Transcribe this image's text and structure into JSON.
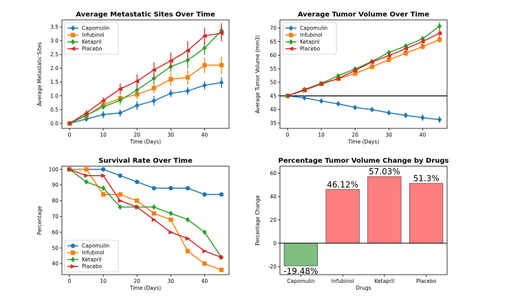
{
  "chart_data": [
    {
      "type": "line",
      "title": "Average Metastatic Sites Over Time",
      "xlabel": "Time (Days)",
      "ylabel": "Average Metastatic Sites",
      "xlim": [
        -2.25,
        47.25
      ],
      "ylim": [
        -0.18,
        3.75
      ],
      "xticks": [
        0,
        10,
        20,
        30,
        40
      ],
      "yticks": [
        0.0,
        0.5,
        1.0,
        1.5,
        2.0,
        2.5,
        3.0,
        3.5
      ],
      "ytick_labels": [
        "0.0",
        "0.5",
        "1.0",
        "1.5",
        "2.0",
        "2.5",
        "3.0",
        "3.5"
      ],
      "legend": "top-left",
      "error_bars": true,
      "x": [
        0,
        5,
        10,
        15,
        20,
        25,
        30,
        35,
        40,
        45
      ],
      "series": [
        {
          "name": "Capomulin",
          "color": "#1f77b4",
          "marker": "diamond",
          "values": [
            0.0,
            0.16,
            0.32,
            0.38,
            0.65,
            0.82,
            1.09,
            1.18,
            1.38,
            1.48
          ],
          "errors": [
            0,
            0.07,
            0.13,
            0.13,
            0.16,
            0.18,
            0.14,
            0.14,
            0.15,
            0.2
          ]
        },
        {
          "name": "Infubinol",
          "color": "#ff7f0e",
          "marker": "square",
          "values": [
            0.0,
            0.28,
            0.67,
            0.91,
            1.05,
            1.28,
            1.6,
            1.67,
            2.11,
            2.11
          ],
          "errors": [
            0,
            0.09,
            0.12,
            0.12,
            0.17,
            0.19,
            0.23,
            0.26,
            0.29,
            0.31
          ]
        },
        {
          "name": "Ketapril",
          "color": "#2ca02c",
          "marker": "diamond",
          "values": [
            0.0,
            0.3,
            0.6,
            0.84,
            1.21,
            1.63,
            2.06,
            2.29,
            2.73,
            3.36
          ],
          "errors": [
            0,
            0.1,
            0.1,
            0.16,
            0.18,
            0.22,
            0.2,
            0.3,
            0.25,
            0.28
          ]
        },
        {
          "name": "Placebo",
          "color": "#d62728",
          "marker": "triangle-left",
          "values": [
            0.0,
            0.38,
            0.83,
            1.25,
            1.53,
            1.94,
            2.27,
            2.64,
            3.17,
            3.27
          ],
          "errors": [
            0,
            0.1,
            0.12,
            0.19,
            0.24,
            0.27,
            0.3,
            0.34,
            0.3,
            0.3
          ]
        }
      ]
    },
    {
      "type": "line",
      "title": "Average Tumor Volume Over Time",
      "xlabel": "Time (Days)",
      "ylabel": "Average Tumor Volume (mm3)",
      "xlim": [
        -2.25,
        47.25
      ],
      "ylim": [
        33.0,
        73.0
      ],
      "xticks": [
        0,
        10,
        20,
        30,
        40
      ],
      "yticks": [
        35,
        40,
        45,
        50,
        55,
        60,
        65,
        70
      ],
      "ytick_labels": [
        "35",
        "40",
        "45",
        "50",
        "55",
        "60",
        "65",
        "70"
      ],
      "hline": 45,
      "legend": "top-left",
      "error_bars": true,
      "x": [
        0,
        5,
        10,
        15,
        20,
        25,
        30,
        35,
        40,
        45
      ],
      "series": [
        {
          "name": "Capomulin",
          "color": "#1f77b4",
          "marker": "diamond",
          "values": [
            45.0,
            44.27,
            43.08,
            42.06,
            40.72,
            39.94,
            38.77,
            37.82,
            36.96,
            36.24
          ],
          "errors": [
            0,
            0.45,
            0.7,
            0.83,
            0.91,
            0.89,
            0.93,
            1.05,
            1.22,
            1.22
          ]
        },
        {
          "name": "Infubinol",
          "color": "#ff7f0e",
          "marker": "square",
          "values": [
            45.0,
            47.06,
            49.4,
            51.3,
            53.2,
            55.72,
            58.3,
            60.74,
            63.16,
            65.76
          ],
          "errors": [
            0,
            0.24,
            0.28,
            0.36,
            0.48,
            0.55,
            0.63,
            0.98,
            1.06,
            1.14
          ]
        },
        {
          "name": "Ketapril",
          "color": "#2ca02c",
          "marker": "diamond",
          "values": [
            45.0,
            47.39,
            49.58,
            52.4,
            54.92,
            57.68,
            60.99,
            63.37,
            66.07,
            70.66
          ],
          "errors": [
            0,
            0.26,
            0.36,
            0.54,
            0.63,
            0.81,
            0.98,
            1.0,
            1.0,
            1.45
          ]
        },
        {
          "name": "Placebo",
          "color": "#d62728",
          "marker": "triangle-left",
          "values": [
            45.0,
            47.13,
            49.42,
            51.36,
            54.36,
            57.48,
            59.81,
            62.42,
            65.05,
            68.08
          ],
          "errors": [
            0,
            0.22,
            0.4,
            0.61,
            0.84,
            1.03,
            1.22,
            1.29,
            1.37,
            1.35
          ]
        }
      ]
    },
    {
      "type": "line",
      "title": "Survival Rate Over Time",
      "xlabel": "Time (Days)",
      "ylabel": "Percentage",
      "xlim": [
        -2.25,
        47.25
      ],
      "ylim": [
        33.0,
        102.0
      ],
      "xticks": [
        0,
        10,
        20,
        30,
        40
      ],
      "yticks": [
        40,
        50,
        60,
        70,
        80,
        90,
        100
      ],
      "ytick_labels": [
        "40",
        "50",
        "60",
        "70",
        "80",
        "90",
        "100"
      ],
      "legend": "bottom-left",
      "x": [
        0,
        5,
        10,
        15,
        20,
        25,
        30,
        35,
        40,
        45
      ],
      "series": [
        {
          "name": "Capomulin",
          "color": "#1f77b4",
          "marker": "circle",
          "values": [
            100,
            100,
            100,
            96,
            92,
            88,
            88,
            88,
            84,
            84
          ]
        },
        {
          "name": "Infubinol",
          "color": "#ff7f0e",
          "marker": "square",
          "values": [
            100,
            100,
            84,
            84,
            80,
            72,
            68,
            48,
            40,
            36
          ]
        },
        {
          "name": "Ketapril",
          "color": "#2ca02c",
          "marker": "diamond",
          "values": [
            100,
            92,
            88,
            76,
            76,
            76,
            72,
            68,
            60,
            44
          ]
        },
        {
          "name": "Placebo",
          "color": "#d62728",
          "marker": "triangle-right",
          "values": [
            100,
            96,
            96,
            80,
            76,
            68,
            60,
            56,
            48,
            44
          ]
        }
      ]
    },
    {
      "type": "bar",
      "title": "Percentage Tumor Volume Change by Drugs",
      "xlabel": "Drugs",
      "ylabel": "Percentage Change",
      "categories": [
        "Capomulin",
        "Infubinol",
        "Ketapril",
        "Placebo"
      ],
      "values": [
        -19.48,
        46.12,
        57.03,
        51.3
      ],
      "value_labels": [
        "-19.48%",
        "46.12%",
        "57.03%",
        "51.3%"
      ],
      "colors": [
        "#7fbf7f",
        "#ff7f7f",
        "#ff7f7f",
        "#ff7f7f"
      ],
      "ylim": [
        -27.0,
        66.0
      ],
      "yticks": [
        -20,
        0,
        20,
        40,
        60
      ],
      "ytick_labels": [
        "-20",
        "0",
        "20",
        "40",
        "60"
      ]
    }
  ]
}
